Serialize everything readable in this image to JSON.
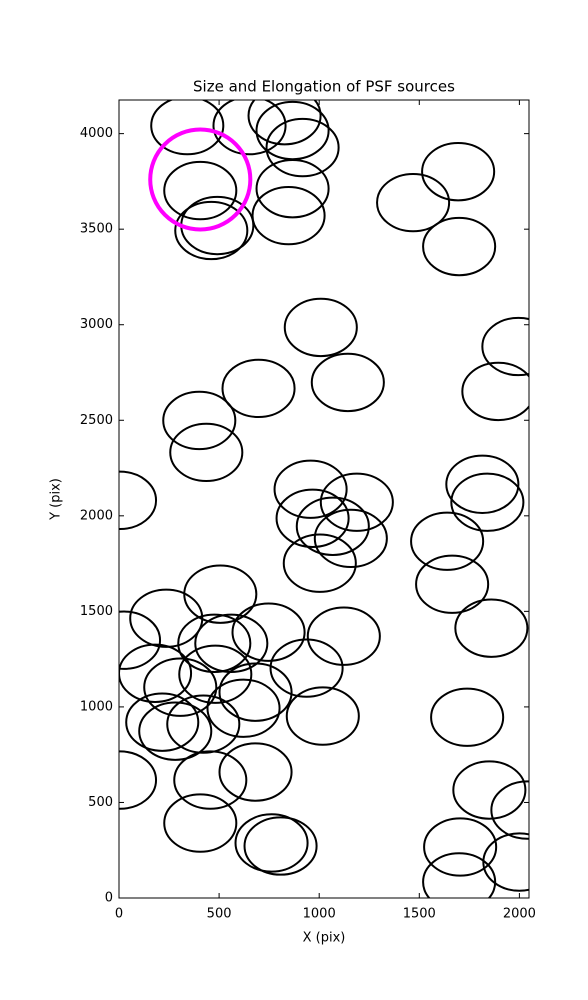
{
  "chart_data": {
    "type": "ellipse",
    "title": "Size and Elongation of PSF sources",
    "xlabel": "X (pix)",
    "ylabel": "Y (pix)",
    "xlim": [
      0,
      2048
    ],
    "ylim": [
      0,
      4176
    ],
    "xticks": [
      0,
      500,
      1000,
      1500,
      2000
    ],
    "yticks": [
      0,
      500,
      1000,
      1500,
      2000,
      2500,
      3000,
      3500,
      4000
    ],
    "ellipses": {
      "x": [
        341,
        652,
        827,
        867,
        917,
        406,
        491,
        461,
        867,
        847,
        1469,
        1694,
        1699,
        1008,
        1143,
        1995,
        1895,
        697,
        401,
        436,
        5,
        957,
        1188,
        967,
        1068,
        1158,
        1003,
        1815,
        1840,
        1639,
        1664,
        1860,
        506,
        236,
        25,
        180,
        476,
        561,
        747,
        1123,
        937,
        481,
        306,
        682,
        622,
        216,
        281,
        421,
        1018,
        1739,
        682,
        456,
        5,
        406,
        762,
        807,
        1850,
        2040,
        1704,
        1699,
        2000
      ],
      "y": [
        4042,
        4042,
        4094,
        4016,
        3927,
        3702,
        3519,
        3493,
        3712,
        3571,
        3639,
        3801,
        3409,
        2986,
        2698,
        2886,
        2651,
        2667,
        2499,
        2332,
        2081,
        2139,
        2071,
        1987,
        1945,
        1882,
        1752,
        2165,
        2071,
        1867,
        1642,
        1412,
        1590,
        1464,
        1349,
        1176,
        1333,
        1333,
        1391,
        1370,
        1203,
        1171,
        1103,
        1077,
        993,
        920,
        873,
        910,
        952,
        946,
        659,
        617,
        617,
        392,
        288,
        272,
        565,
        460,
        267,
        84,
        188
      ],
      "width": 360,
      "height": 300,
      "color": "#000000"
    },
    "highlight": {
      "x": 406,
      "y": 3760,
      "width": 500,
      "height": 523,
      "color": "#ff00ff"
    }
  }
}
